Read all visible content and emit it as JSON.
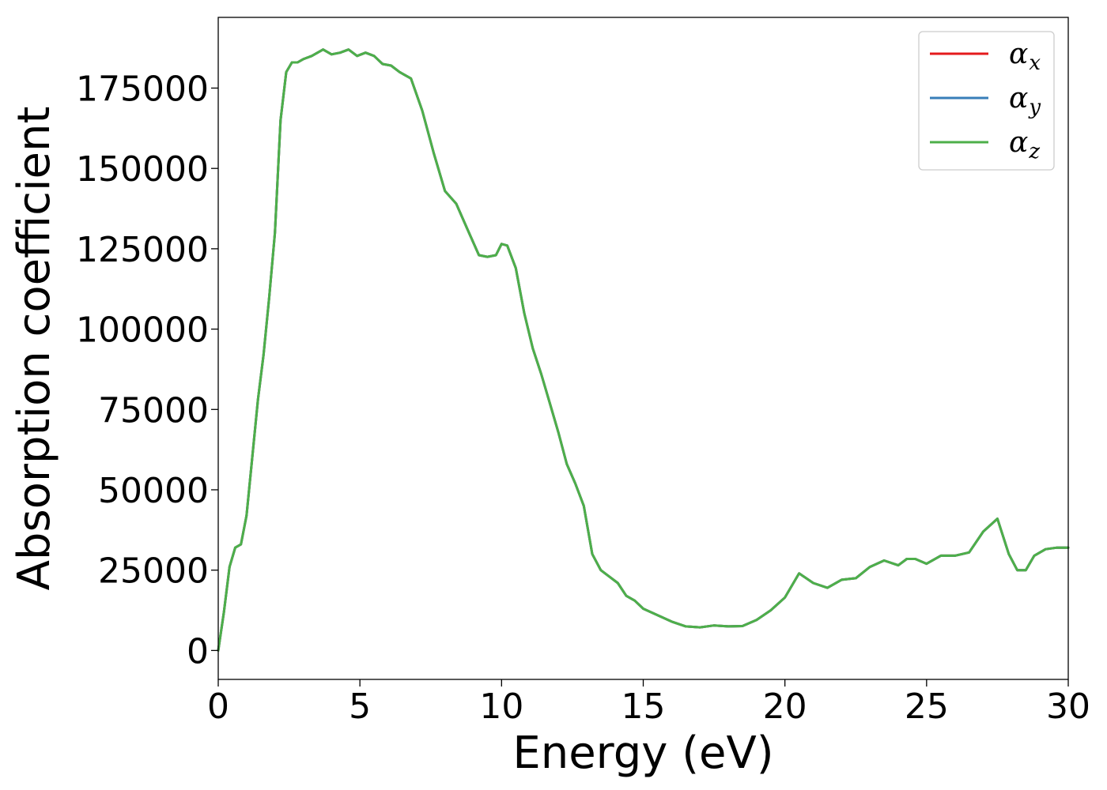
{
  "chart_data": {
    "type": "line",
    "xlabel": "Energy (eV)",
    "ylabel": "Absorption coefficient",
    "xlim": [
      0,
      30
    ],
    "ylim": [
      -9000,
      197000
    ],
    "x_ticks": [
      0,
      5,
      10,
      15,
      20,
      25,
      30
    ],
    "y_ticks": [
      0,
      25000,
      50000,
      75000,
      100000,
      125000,
      150000,
      175000
    ],
    "grid": false,
    "legend_position": "top-right",
    "series": [
      {
        "name": "α",
        "subscript": "x",
        "color": "#e41a1c",
        "x": [
          0,
          0.2,
          0.4,
          0.6,
          0.8,
          1.0,
          1.2,
          1.4,
          1.6,
          1.8,
          2.0,
          2.2,
          2.4,
          2.6,
          2.8,
          3.0,
          3.3,
          3.7,
          4.0,
          4.3,
          4.6,
          4.9,
          5.2,
          5.5,
          5.8,
          6.1,
          6.4,
          6.8,
          7.2,
          7.6,
          8.0,
          8.4,
          8.8,
          9.2,
          9.5,
          9.8,
          10.0,
          10.2,
          10.5,
          10.8,
          11.1,
          11.4,
          11.7,
          12.0,
          12.3,
          12.6,
          12.9,
          13.2,
          13.5,
          13.8,
          14.1,
          14.4,
          14.7,
          15.0,
          15.5,
          16.0,
          16.5,
          17.0,
          17.5,
          18.0,
          18.5,
          19.0,
          19.5,
          20.0,
          20.5,
          21.0,
          21.5,
          22.0,
          22.5,
          23.0,
          23.5,
          24.0,
          24.3,
          24.6,
          25.0,
          25.5,
          26.0,
          26.5,
          27.0,
          27.5,
          27.9,
          28.2,
          28.5,
          28.8,
          29.2,
          29.6,
          30.0
        ],
        "y": [
          0,
          12000,
          26000,
          32000,
          33000,
          42000,
          60000,
          78000,
          92000,
          110000,
          130000,
          165000,
          180000,
          183000,
          183000,
          184000,
          185000,
          187000,
          185500,
          186000,
          187000,
          185000,
          186000,
          185000,
          182500,
          182000,
          180000,
          178000,
          168000,
          155000,
          143000,
          139000,
          131000,
          123000,
          122500,
          123000,
          126500,
          126000,
          119000,
          105000,
          94000,
          86000,
          77000,
          68000,
          58000,
          52000,
          45000,
          30000,
          25000,
          23000,
          21000,
          17000,
          15500,
          13000,
          11000,
          9000,
          7500,
          7200,
          7800,
          7500,
          7600,
          9500,
          12500,
          16500,
          24000,
          21000,
          19500,
          22000,
          22500,
          26000,
          28000,
          26500,
          28500,
          28500,
          27000,
          29500,
          29500,
          30500,
          37000,
          41000,
          30000,
          25000,
          25000,
          29500,
          31500,
          32000,
          32000
        ]
      },
      {
        "name": "α",
        "subscript": "y",
        "color": "#377eb8",
        "x": [
          0,
          0.2,
          0.4,
          0.6,
          0.8,
          1.0,
          1.2,
          1.4,
          1.6,
          1.8,
          2.0,
          2.2,
          2.4,
          2.6,
          2.8,
          3.0,
          3.3,
          3.7,
          4.0,
          4.3,
          4.6,
          4.9,
          5.2,
          5.5,
          5.8,
          6.1,
          6.4,
          6.8,
          7.2,
          7.6,
          8.0,
          8.4,
          8.8,
          9.2,
          9.5,
          9.8,
          10.0,
          10.2,
          10.5,
          10.8,
          11.1,
          11.4,
          11.7,
          12.0,
          12.3,
          12.6,
          12.9,
          13.2,
          13.5,
          13.8,
          14.1,
          14.4,
          14.7,
          15.0,
          15.5,
          16.0,
          16.5,
          17.0,
          17.5,
          18.0,
          18.5,
          19.0,
          19.5,
          20.0,
          20.5,
          21.0,
          21.5,
          22.0,
          22.5,
          23.0,
          23.5,
          24.0,
          24.3,
          24.6,
          25.0,
          25.5,
          26.0,
          26.5,
          27.0,
          27.5,
          27.9,
          28.2,
          28.5,
          28.8,
          29.2,
          29.6,
          30.0
        ],
        "y": [
          0,
          12000,
          26000,
          32000,
          33000,
          42000,
          60000,
          78000,
          92000,
          110000,
          130000,
          165000,
          180000,
          183000,
          183000,
          184000,
          185000,
          187000,
          185500,
          186000,
          187000,
          185000,
          186000,
          185000,
          182500,
          182000,
          180000,
          178000,
          168000,
          155000,
          143000,
          139000,
          131000,
          123000,
          122500,
          123000,
          126500,
          126000,
          119000,
          105000,
          94000,
          86000,
          77000,
          68000,
          58000,
          52000,
          45000,
          30000,
          25000,
          23000,
          21000,
          17000,
          15500,
          13000,
          11000,
          9000,
          7500,
          7200,
          7800,
          7500,
          7600,
          9500,
          12500,
          16500,
          24000,
          21000,
          19500,
          22000,
          22500,
          26000,
          28000,
          26500,
          28500,
          28500,
          27000,
          29500,
          29500,
          30500,
          37000,
          41000,
          30000,
          25000,
          25000,
          29500,
          31500,
          32000,
          32000
        ]
      },
      {
        "name": "α",
        "subscript": "z",
        "color": "#4daf4a",
        "x": [
          0,
          0.2,
          0.4,
          0.6,
          0.8,
          1.0,
          1.2,
          1.4,
          1.6,
          1.8,
          2.0,
          2.2,
          2.4,
          2.6,
          2.8,
          3.0,
          3.3,
          3.7,
          4.0,
          4.3,
          4.6,
          4.9,
          5.2,
          5.5,
          5.8,
          6.1,
          6.4,
          6.8,
          7.2,
          7.6,
          8.0,
          8.4,
          8.8,
          9.2,
          9.5,
          9.8,
          10.0,
          10.2,
          10.5,
          10.8,
          11.1,
          11.4,
          11.7,
          12.0,
          12.3,
          12.6,
          12.9,
          13.2,
          13.5,
          13.8,
          14.1,
          14.4,
          14.7,
          15.0,
          15.5,
          16.0,
          16.5,
          17.0,
          17.5,
          18.0,
          18.5,
          19.0,
          19.5,
          20.0,
          20.5,
          21.0,
          21.5,
          22.0,
          22.5,
          23.0,
          23.5,
          24.0,
          24.3,
          24.6,
          25.0,
          25.5,
          26.0,
          26.5,
          27.0,
          27.5,
          27.9,
          28.2,
          28.5,
          28.8,
          29.2,
          29.6,
          30.0
        ],
        "y": [
          0,
          12000,
          26000,
          32000,
          33000,
          42000,
          60000,
          78000,
          92000,
          110000,
          130000,
          165000,
          180000,
          183000,
          183000,
          184000,
          185000,
          187000,
          185500,
          186000,
          187000,
          185000,
          186000,
          185000,
          182500,
          182000,
          180000,
          178000,
          168000,
          155000,
          143000,
          139000,
          131000,
          123000,
          122500,
          123000,
          126500,
          126000,
          119000,
          105000,
          94000,
          86000,
          77000,
          68000,
          58000,
          52000,
          45000,
          30000,
          25000,
          23000,
          21000,
          17000,
          15500,
          13000,
          11000,
          9000,
          7500,
          7200,
          7800,
          7500,
          7600,
          9500,
          12500,
          16500,
          24000,
          21000,
          19500,
          22000,
          22500,
          26000,
          28000,
          26500,
          28500,
          28500,
          27000,
          29500,
          29500,
          30500,
          37000,
          41000,
          30000,
          25000,
          25000,
          29500,
          31500,
          32000,
          32000
        ]
      }
    ]
  }
}
